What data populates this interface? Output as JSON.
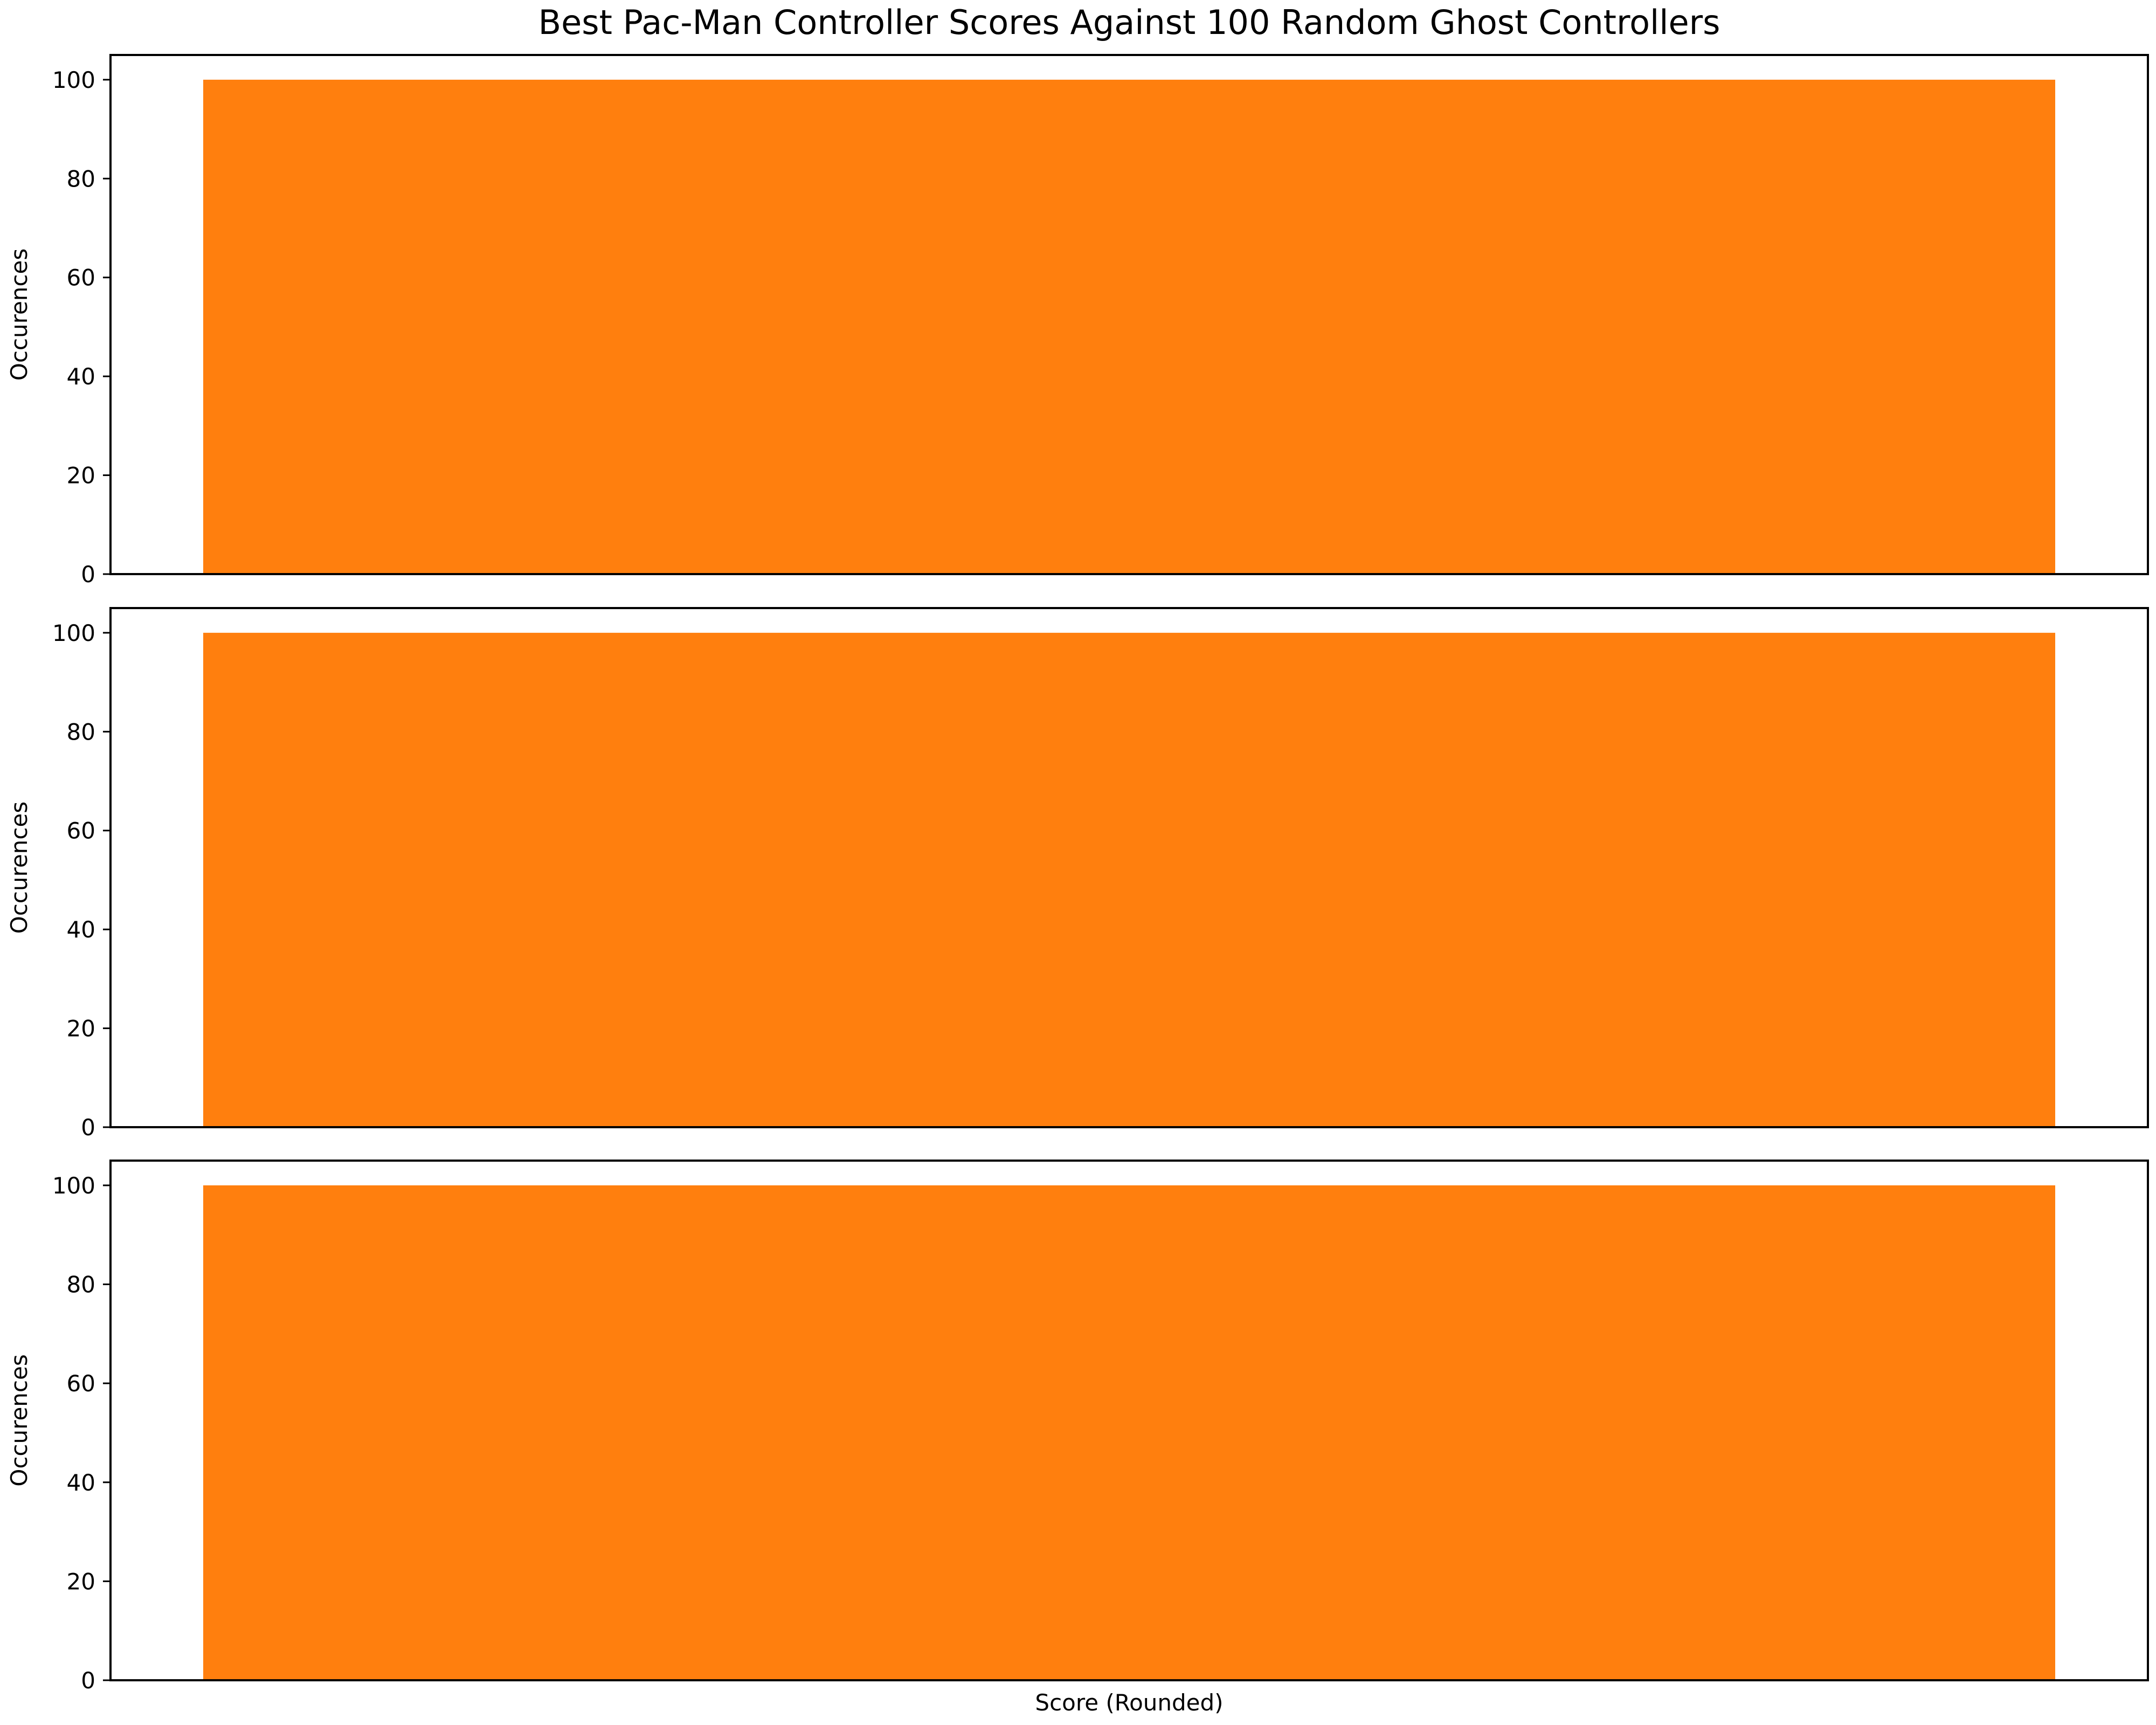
{
  "figure": {
    "title": "Best Pac-Man Controller Scores Against 100 Random Ghost Controllers",
    "xlabel": "Score (Rounded)"
  },
  "colors": {
    "bar": "#ff7f0e",
    "axes": "#000000",
    "background": "#ffffff"
  },
  "chart_data": [
    {
      "type": "bar",
      "categories": [
        ""
      ],
      "values": [
        100
      ],
      "xlabel": "",
      "ylabel": "Occurences",
      "ylim": [
        0,
        105
      ],
      "yticks": [
        "0",
        "20",
        "40",
        "60",
        "80",
        "100"
      ],
      "grid": false
    },
    {
      "type": "bar",
      "categories": [
        ""
      ],
      "values": [
        100
      ],
      "xlabel": "",
      "ylabel": "Occurences",
      "ylim": [
        0,
        105
      ],
      "yticks": [
        "0",
        "20",
        "40",
        "60",
        "80",
        "100"
      ],
      "grid": false
    },
    {
      "type": "bar",
      "categories": [
        ""
      ],
      "values": [
        100
      ],
      "xlabel": "Score (Rounded)",
      "ylabel": "Occurences",
      "ylim": [
        0,
        105
      ],
      "yticks": [
        "0",
        "20",
        "40",
        "60",
        "80",
        "100"
      ],
      "grid": false
    }
  ]
}
